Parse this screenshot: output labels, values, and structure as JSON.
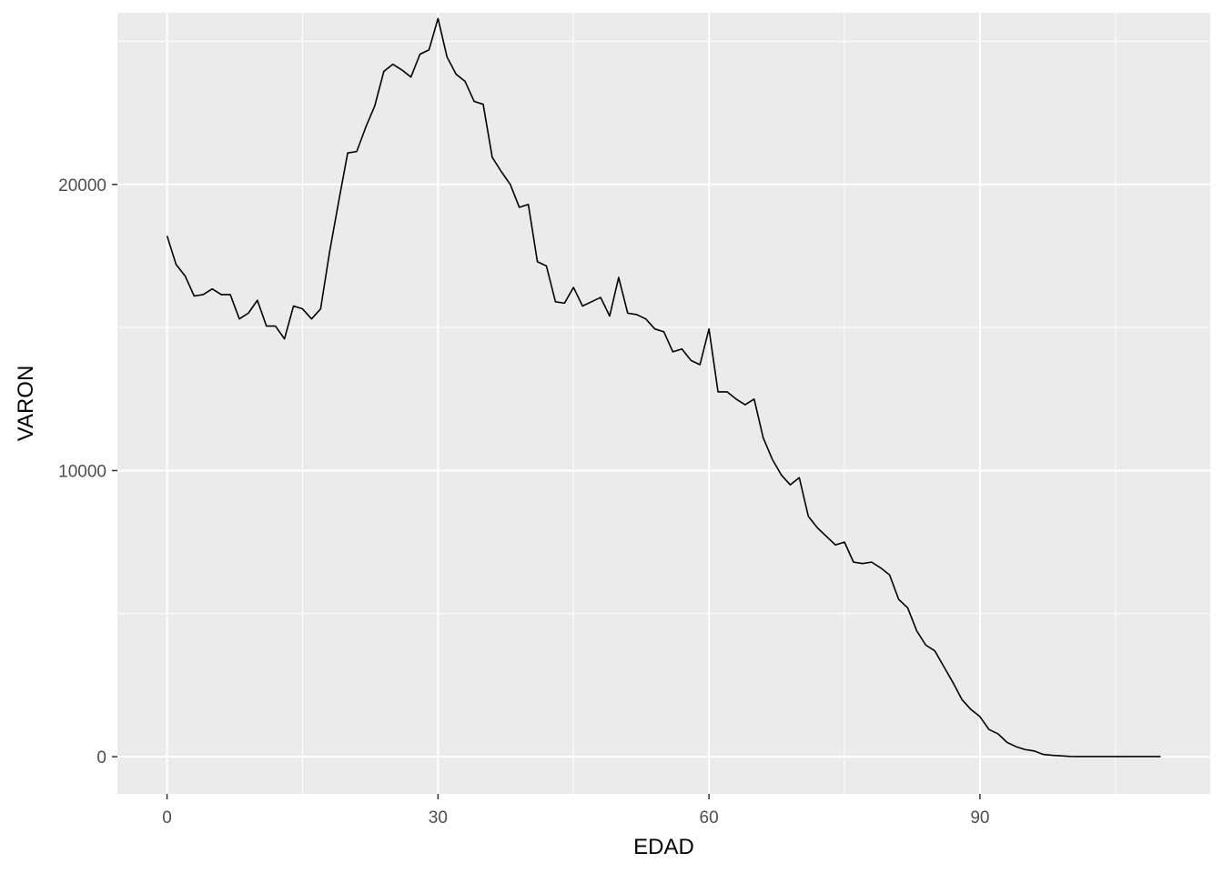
{
  "chart_data": {
    "type": "line",
    "xlabel": "EDAD",
    "ylabel": "VARON",
    "xlim": [
      -5.5,
      115.5
    ],
    "ylim": [
      -1300,
      26000
    ],
    "x_ticks": [
      0,
      30,
      60,
      90
    ],
    "x_tick_labels": [
      "0",
      "30",
      "60",
      "90"
    ],
    "x_minor_ticks": [
      15,
      45,
      75,
      105
    ],
    "y_ticks": [
      0,
      10000,
      20000
    ],
    "y_tick_labels": [
      "0",
      "10000",
      "20000"
    ],
    "y_minor_ticks": [
      5000,
      15000,
      25000
    ],
    "grid": true,
    "legend": "none",
    "colors": {
      "panel": "#ebebeb",
      "grid": "#ffffff",
      "line": "#000000",
      "tick_text": "#4d4d4d"
    },
    "series": [
      {
        "x": [
          0,
          1,
          2,
          3,
          4,
          5,
          6,
          7,
          8,
          9,
          10,
          11,
          12,
          13,
          14,
          15,
          16,
          17,
          18,
          19,
          20,
          21,
          22,
          23,
          24,
          25,
          26,
          27,
          28,
          29,
          30,
          31,
          32,
          33,
          34,
          35,
          36,
          37,
          38,
          39,
          40,
          41,
          42,
          43,
          44,
          45,
          46,
          47,
          48,
          49,
          50,
          51,
          52,
          53,
          54,
          55,
          56,
          57,
          58,
          59,
          60,
          61,
          62,
          63,
          64,
          65,
          66,
          67,
          68,
          69,
          70,
          71,
          72,
          73,
          74,
          75,
          76,
          77,
          78,
          79,
          80,
          81,
          82,
          83,
          84,
          85,
          86,
          87,
          88,
          89,
          90,
          91,
          92,
          93,
          94,
          95,
          96,
          97,
          98,
          99,
          100,
          101,
          102,
          103,
          104,
          105,
          106,
          107,
          108,
          109,
          110
        ],
        "values": [
          18200,
          17200,
          16800,
          16100,
          16150,
          16350,
          16150,
          16150,
          15300,
          15500,
          15950,
          15050,
          15050,
          14600,
          15750,
          15650,
          15300,
          15650,
          17650,
          19400,
          21100,
          21150,
          22000,
          22750,
          23950,
          24200,
          24000,
          23750,
          24550,
          24700,
          25800,
          24450,
          23850,
          23600,
          22900,
          22800,
          20950,
          20450,
          20000,
          19200,
          19300,
          17300,
          17150,
          15900,
          15850,
          16400,
          15750,
          15900,
          16050,
          15400,
          16750,
          15500,
          15450,
          15300,
          14950,
          14850,
          14150,
          14250,
          13850,
          13700,
          14950,
          12750,
          12750,
          12500,
          12300,
          12500,
          11150,
          10400,
          9850,
          9500,
          9750,
          8400,
          8000,
          7700,
          7400,
          7500,
          6800,
          6750,
          6800,
          6600,
          6350,
          5500,
          5200,
          4400,
          3900,
          3700,
          3150,
          2600,
          2000,
          1650,
          1400,
          950,
          800,
          500,
          350,
          250,
          200,
          80,
          50,
          30,
          10,
          5,
          5,
          5,
          5,
          5,
          5,
          5,
          5,
          5,
          5
        ]
      }
    ]
  }
}
